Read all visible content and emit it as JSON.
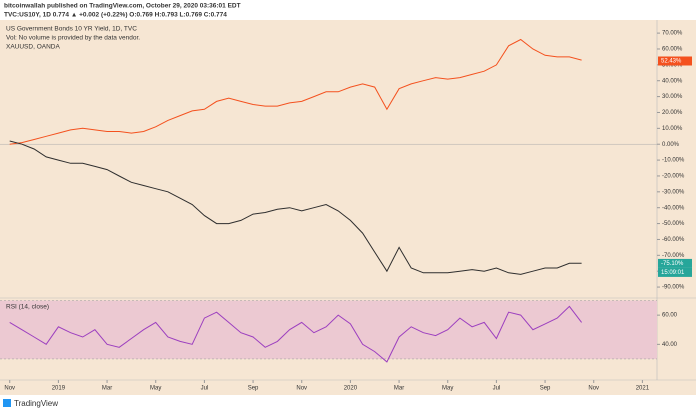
{
  "header": {
    "publisher": "bitcoinwallah published on TradingView.com, October 29, 2020 03:36:01 EDT",
    "quote": "TVC:US10Y, 1D 0.774 ▲ +0.002 (+0.22%) O:0.769 H:0.793 L:0.769 C:0.774"
  },
  "footer": {
    "brand": "TradingView"
  },
  "chart_data": [
    {
      "type": "line",
      "legend_texts": [
        "US Government Bonds 10 YR Yield, 1D, TVC",
        "Vol: No volume is provided by the data vendor.",
        "XAUUSD, OANDA"
      ],
      "x": [
        0,
        0.5,
        1,
        1.5,
        2,
        2.5,
        3,
        3.5,
        4,
        4.5,
        5,
        5.5,
        6,
        6.5,
        7,
        7.5,
        8,
        8.5,
        9,
        9.5,
        10,
        10.5,
        11,
        11.5,
        12,
        12.5,
        13,
        13.5,
        14,
        14.5,
        15,
        15.5,
        16,
        16.5,
        17,
        17.5,
        18,
        18.5,
        19,
        19.5,
        20,
        20.5,
        21,
        21.5,
        22,
        22.5,
        23,
        23.5
      ],
      "series": [
        {
          "name": "XAUUSD",
          "color": "#f4511e",
          "values": [
            0,
            1,
            3,
            5,
            7,
            9,
            10,
            9,
            8,
            8,
            7,
            8,
            11,
            15,
            18,
            21,
            22,
            27,
            29,
            27,
            25,
            24,
            24,
            26,
            27,
            30,
            33,
            33,
            36,
            38,
            36,
            22,
            35,
            38,
            40,
            42,
            41,
            42,
            44,
            46,
            50,
            62,
            66,
            60,
            56,
            55,
            55,
            53
          ]
        },
        {
          "name": "US10Y",
          "color": "#2e2e2e",
          "values": [
            2,
            0,
            -3,
            -8,
            -10,
            -12,
            -12,
            -14,
            -16,
            -20,
            -24,
            -26,
            -28,
            -30,
            -34,
            -38,
            -45,
            -50,
            -50,
            -48,
            -44,
            -43,
            -41,
            -40,
            -42,
            -40,
            -38,
            -42,
            -48,
            -56,
            -68,
            -80,
            -65,
            -78,
            -81,
            -81,
            -81,
            -80,
            -79,
            -80,
            -78,
            -81,
            -82,
            -80,
            -78,
            -78,
            -75,
            -75
          ]
        }
      ],
      "xlim": [
        -0.4,
        26.6
      ],
      "xticks": [
        {
          "value": 0,
          "label": "Nov"
        },
        {
          "value": 2,
          "label": "2019"
        },
        {
          "value": 4,
          "label": "Mar"
        },
        {
          "value": 6,
          "label": "May"
        },
        {
          "value": 8,
          "label": "Jul"
        },
        {
          "value": 10,
          "label": "Sep"
        },
        {
          "value": 12,
          "label": "Nov"
        },
        {
          "value": 14,
          "label": "2020"
        },
        {
          "value": 16,
          "label": "Mar"
        },
        {
          "value": 18,
          "label": "May"
        },
        {
          "value": 20,
          "label": "Jul"
        },
        {
          "value": 22,
          "label": "Sep"
        },
        {
          "value": 24,
          "label": "Nov"
        },
        {
          "value": 26,
          "label": "2021"
        }
      ],
      "ylim": [
        -95,
        77
      ],
      "yticks": [
        {
          "value": 70,
          "label": "70.00%"
        },
        {
          "value": 60,
          "label": "60.00%"
        },
        {
          "value": 50,
          "label": "50.00%"
        },
        {
          "value": 40,
          "label": "40.00%"
        },
        {
          "value": 30,
          "label": "30.00%"
        },
        {
          "value": 20,
          "label": "20.00%"
        },
        {
          "value": 10,
          "label": "10.00%"
        },
        {
          "value": 0,
          "label": "0.00%"
        },
        {
          "value": -10,
          "label": "-10.00%"
        },
        {
          "value": -20,
          "label": "-20.00%"
        },
        {
          "value": -30,
          "label": "-30.00%"
        },
        {
          "value": -40,
          "label": "-40.00%"
        },
        {
          "value": -50,
          "label": "-50.00%"
        },
        {
          "value": -60,
          "label": "-60.00%"
        },
        {
          "value": -70,
          "label": "-70.00%"
        },
        {
          "value": -80,
          "label": "-80.00%"
        },
        {
          "value": -90,
          "label": "-90.00%"
        }
      ],
      "price_labels": [
        {
          "value": 52.43,
          "label": "52.43%",
          "color": "#f4511e"
        },
        {
          "value": -75.1,
          "label": "-75.10%",
          "color": "#26a69a"
        }
      ],
      "countdown": "15:09:01"
    },
    {
      "type": "line",
      "title": "RSI (14, close)",
      "series": [
        {
          "name": "RSI",
          "color": "#9c3fbf",
          "values": [
            55,
            50,
            45,
            40,
            52,
            48,
            45,
            50,
            40,
            38,
            44,
            50,
            55,
            45,
            42,
            40,
            58,
            62,
            55,
            48,
            45,
            38,
            42,
            50,
            55,
            48,
            52,
            60,
            54,
            40,
            35,
            28,
            45,
            52,
            48,
            46,
            50,
            58,
            52,
            55,
            44,
            62,
            60,
            50,
            54,
            58,
            66,
            55
          ]
        }
      ],
      "ylim": [
        19,
        69
      ],
      "yticks": [
        {
          "value": 60,
          "label": "60.00"
        },
        {
          "value": 40,
          "label": "40.00"
        }
      ],
      "band": [
        30,
        70
      ]
    }
  ]
}
